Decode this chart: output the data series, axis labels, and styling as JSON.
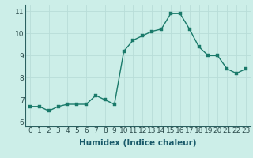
{
  "x": [
    0,
    1,
    2,
    3,
    4,
    5,
    6,
    7,
    8,
    9,
    10,
    11,
    12,
    13,
    14,
    15,
    16,
    17,
    18,
    19,
    20,
    21,
    22,
    23
  ],
  "y": [
    6.7,
    6.7,
    6.5,
    6.7,
    6.8,
    6.8,
    6.8,
    7.2,
    7.0,
    6.8,
    9.2,
    9.7,
    9.9,
    10.1,
    10.2,
    10.9,
    10.9,
    10.2,
    9.4,
    9.0,
    9.0,
    8.4,
    8.2,
    8.4
  ],
  "line_color": "#1a7a6a",
  "marker_color": "#1a7a6a",
  "bg_color": "#cceee8",
  "grid_color": "#b8ddd8",
  "xlabel": "Humidex (Indice chaleur)",
  "xlim": [
    -0.5,
    23.5
  ],
  "ylim": [
    5.8,
    11.3
  ],
  "yticks": [
    6,
    7,
    8,
    9,
    10,
    11
  ],
  "xticks": [
    0,
    1,
    2,
    3,
    4,
    5,
    6,
    7,
    8,
    9,
    10,
    11,
    12,
    13,
    14,
    15,
    16,
    17,
    18,
    19,
    20,
    21,
    22,
    23
  ],
  "xlabel_fontsize": 7.5,
  "tick_fontsize": 6.5,
  "line_width": 1.0,
  "marker_size": 2.5
}
